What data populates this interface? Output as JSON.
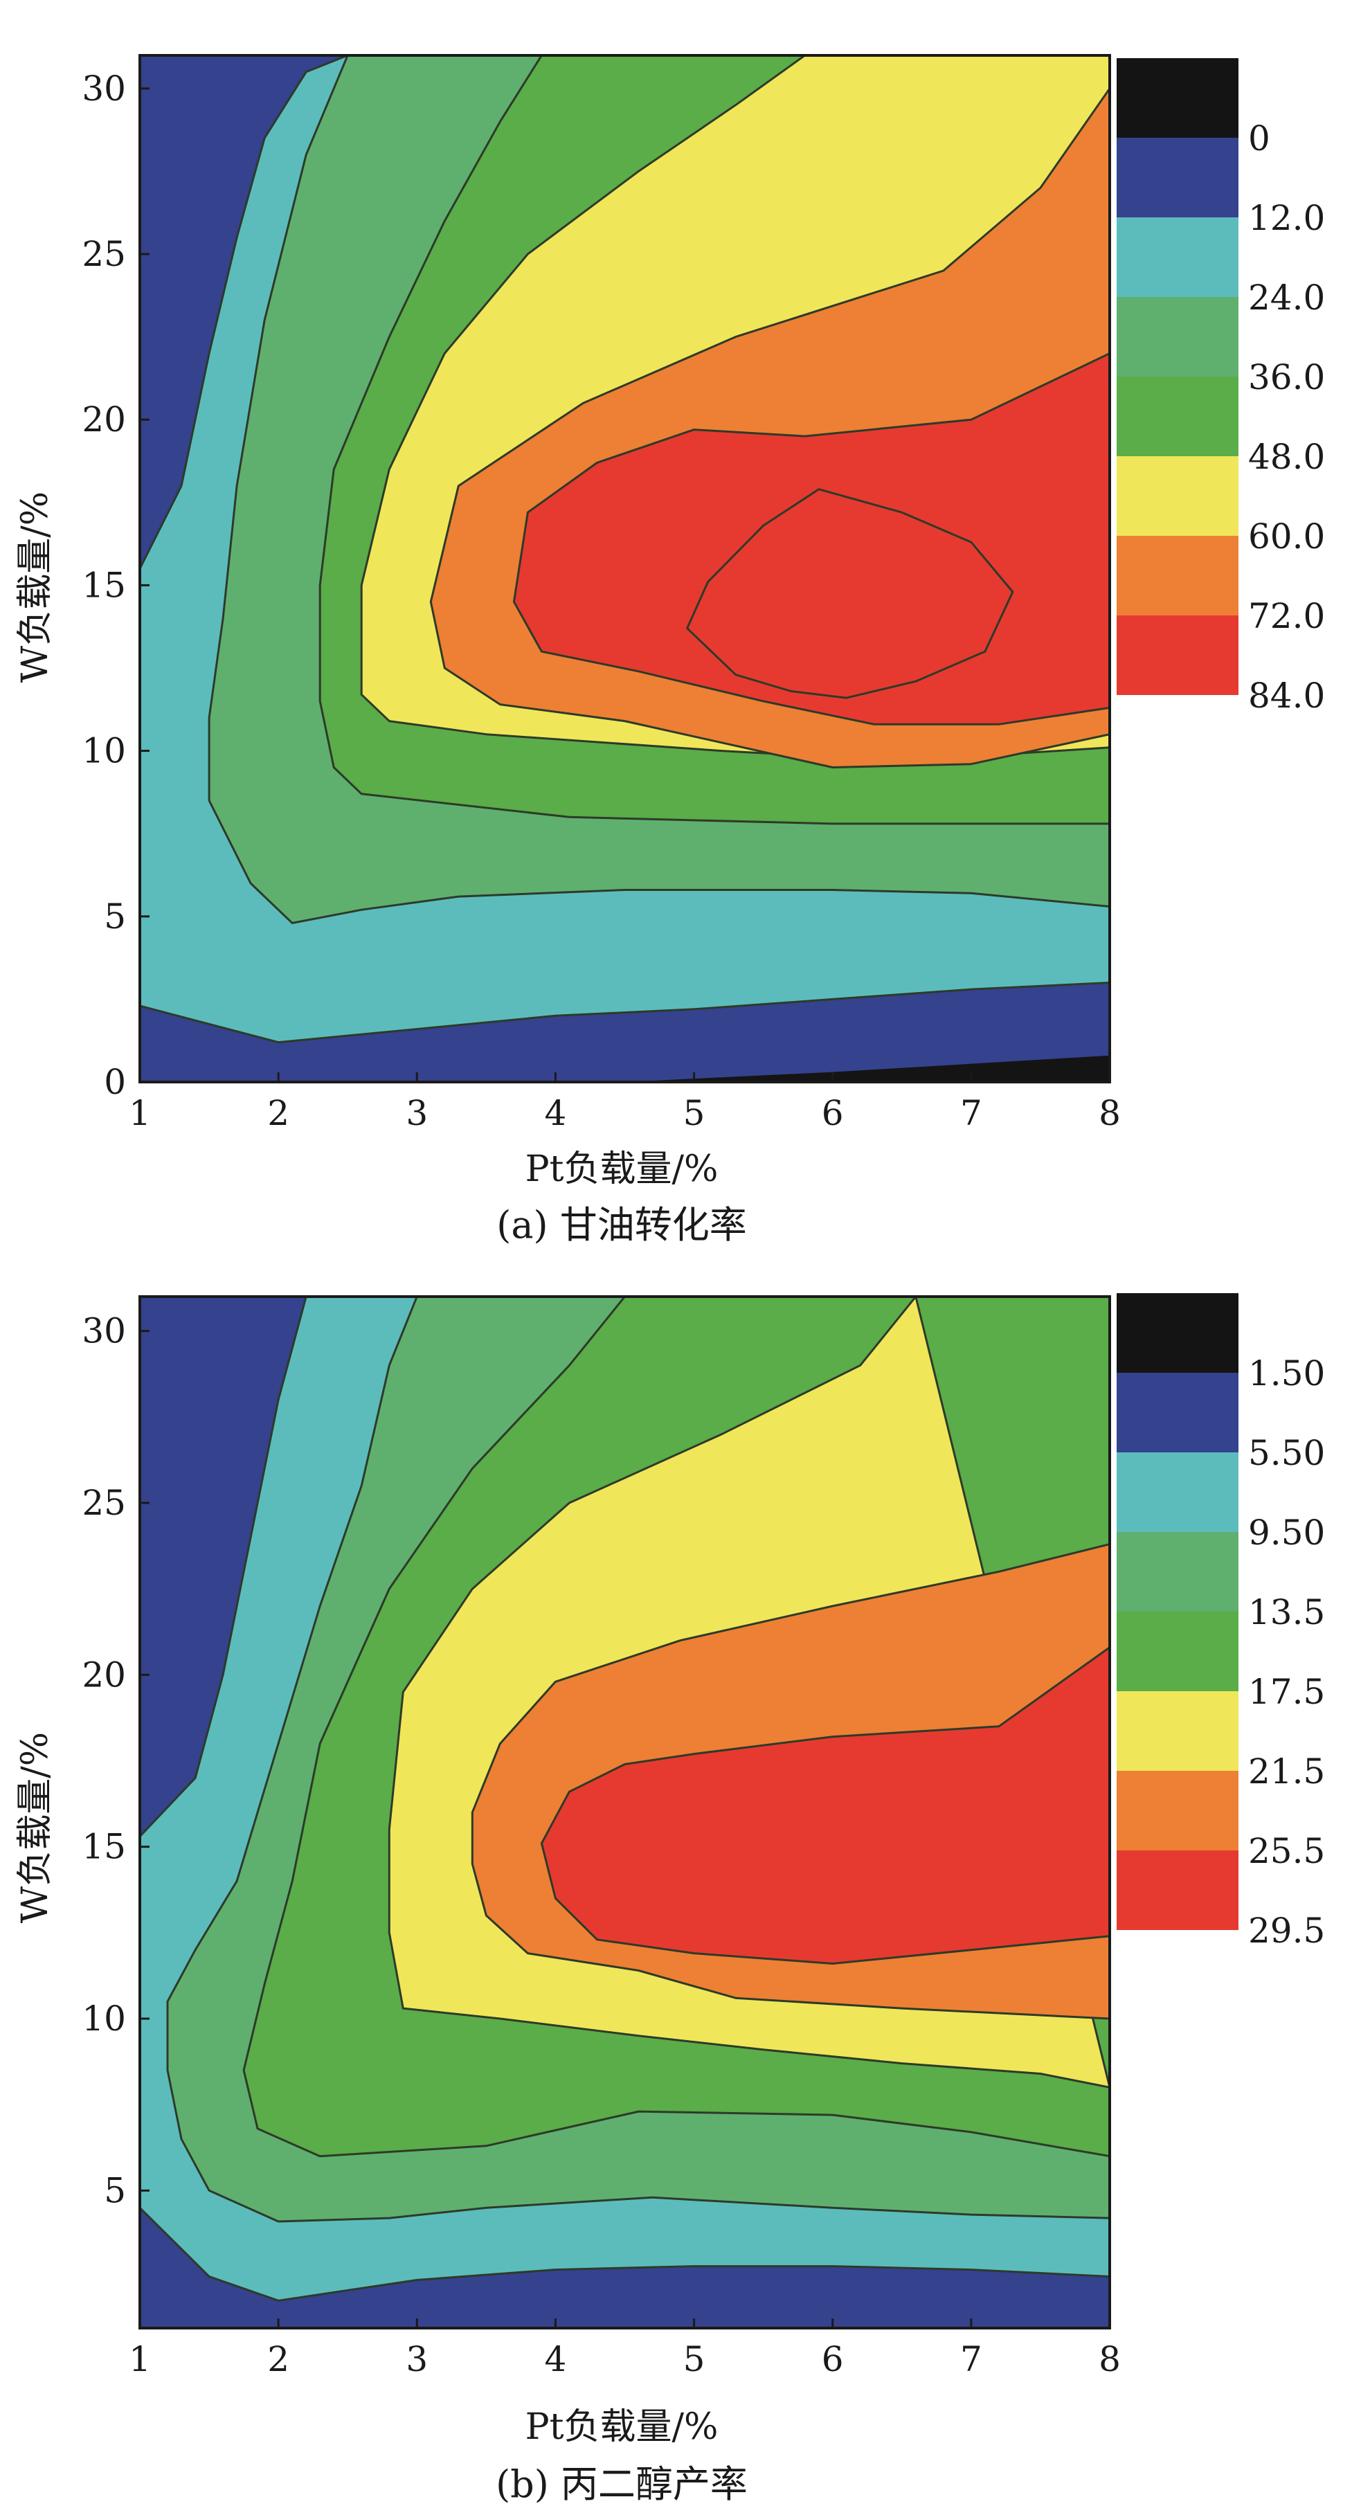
{
  "chart_data": [
    {
      "type": "heatmap",
      "subtype": "filled-contour",
      "caption": "(a) 甘油转化率",
      "xlabel": "Pt负载量/%",
      "ylabel": "W负载量/%",
      "xlim": [
        1,
        8
      ],
      "ylim": [
        0,
        31
      ],
      "x_ticks": [
        "1",
        "2",
        "3",
        "4",
        "5",
        "6",
        "7",
        "8"
      ],
      "y_ticks": [
        "0",
        "5",
        "10",
        "15",
        "20",
        "25",
        "30"
      ],
      "legend_position": "right",
      "colorbar": {
        "labels": [
          "0",
          "12.0",
          "24.0",
          "36.0",
          "48.0",
          "60.0",
          "72.0",
          "84.0"
        ],
        "colors": [
          "#141414",
          "#35428e",
          "#5cbcbc",
          "#5fb06e",
          "#5aad48",
          "#f0e65a",
          "#ed8034",
          "#e63a30"
        ]
      },
      "contours": [
        {
          "level": "12.0",
          "points": [
            [
              1,
              2.3
            ],
            [
              2,
              1.2
            ],
            [
              3,
              1.6
            ],
            [
              4,
              2.0
            ],
            [
              5,
              2.2
            ],
            [
              6,
              2.5
            ],
            [
              7,
              2.8
            ],
            [
              8,
              3.0
            ],
            [
              8,
              31
            ],
            [
              2.5,
              31
            ],
            [
              2.2,
              30.5
            ],
            [
              1.9,
              28.5
            ],
            [
              1.7,
              25.5
            ],
            [
              1.5,
              22
            ],
            [
              1.3,
              18
            ],
            [
              1,
              15.5
            ]
          ]
        },
        {
          "level": "24.0",
          "points": [
            [
              2.5,
              31
            ],
            [
              2.2,
              28
            ],
            [
              1.9,
              23
            ],
            [
              1.7,
              18
            ],
            [
              1.6,
              14
            ],
            [
              1.5,
              11
            ],
            [
              1.5,
              8.5
            ],
            [
              1.8,
              6
            ],
            [
              2.1,
              4.8
            ],
            [
              2.6,
              5.2
            ],
            [
              3.3,
              5.6
            ],
            [
              4.5,
              5.8
            ],
            [
              6,
              5.8
            ],
            [
              7,
              5.7
            ],
            [
              8,
              5.3
            ],
            [
              8,
              31
            ]
          ]
        },
        {
          "level": "36.0",
          "points": [
            [
              3.9,
              31
            ],
            [
              3.6,
              29
            ],
            [
              3.2,
              26
            ],
            [
              2.8,
              22.5
            ],
            [
              2.4,
              18.5
            ],
            [
              2.3,
              15
            ],
            [
              2.3,
              11.5
            ],
            [
              2.4,
              9.5
            ],
            [
              2.6,
              8.7
            ],
            [
              4.1,
              8.0
            ],
            [
              6,
              7.8
            ],
            [
              7,
              7.8
            ],
            [
              8,
              7.8
            ],
            [
              8,
              31
            ]
          ]
        },
        {
          "level": "48.0",
          "points": [
            [
              5.8,
              31
            ],
            [
              5.3,
              29.5
            ],
            [
              4.6,
              27.5
            ],
            [
              3.8,
              25
            ],
            [
              3.2,
              22
            ],
            [
              2.8,
              18.5
            ],
            [
              2.6,
              15
            ],
            [
              2.6,
              11.7
            ],
            [
              2.8,
              10.9
            ],
            [
              3.5,
              10.5
            ],
            [
              5.2,
              10.0
            ],
            [
              6.5,
              9.7
            ],
            [
              8,
              10.1
            ],
            [
              8,
              31
            ]
          ]
        },
        {
          "level": "60.0",
          "points": [
            [
              8,
              30
            ],
            [
              7.5,
              27
            ],
            [
              6.8,
              24.5
            ],
            [
              5.3,
              22.5
            ],
            [
              4.2,
              20.5
            ],
            [
              3.3,
              18
            ],
            [
              3.1,
              14.5
            ],
            [
              3.2,
              12.5
            ],
            [
              3.6,
              11.4
            ],
            [
              4.5,
              10.9
            ],
            [
              6.0,
              9.5
            ],
            [
              7.0,
              9.6
            ],
            [
              8,
              10.5
            ]
          ]
        },
        {
          "level": "72.0",
          "points": [
            [
              8,
              22
            ],
            [
              7.0,
              20
            ],
            [
              5.8,
              19.5
            ],
            [
              5.0,
              19.7
            ],
            [
              4.3,
              18.7
            ],
            [
              3.8,
              17.2
            ],
            [
              3.7,
              14.5
            ],
            [
              3.9,
              13
            ],
            [
              4.6,
              12.4
            ],
            [
              5.5,
              11.5
            ],
            [
              6.3,
              10.8
            ],
            [
              7.2,
              10.8
            ],
            [
              8,
              11.3
            ]
          ]
        },
        {
          "level": "84.0",
          "points": [
            [
              5.9,
              17.9
            ],
            [
              6.5,
              17.2
            ],
            [
              7.0,
              16.3
            ],
            [
              7.3,
              14.8
            ],
            [
              7.1,
              13
            ],
            [
              6.6,
              12.1
            ],
            [
              6.1,
              11.6
            ],
            [
              5.7,
              11.8
            ],
            [
              5.3,
              12.3
            ],
            [
              4.95,
              13.7
            ],
            [
              5.1,
              15.1
            ],
            [
              5.5,
              16.8
            ]
          ]
        }
      ]
    },
    {
      "type": "heatmap",
      "subtype": "filled-contour",
      "caption": "(b) 丙二醇产率",
      "xlabel": "Pt负载量/%",
      "ylabel": "W负载量/%",
      "xlim": [
        1,
        8
      ],
      "ylim": [
        1,
        31
      ],
      "x_ticks": [
        "1",
        "2",
        "3",
        "4",
        "5",
        "6",
        "7",
        "8"
      ],
      "y_ticks": [
        "5",
        "10",
        "15",
        "20",
        "25",
        "30"
      ],
      "legend_position": "right",
      "colorbar": {
        "labels": [
          "1.50",
          "5.50",
          "9.50",
          "13.5",
          "17.5",
          "21.5",
          "25.5",
          "29.5"
        ],
        "colors": [
          "#141414",
          "#35428e",
          "#5cbcbc",
          "#5fb06e",
          "#5aad48",
          "#f0e65a",
          "#ed8034",
          "#e63a30"
        ]
      },
      "contours": [
        {
          "level": "5.50",
          "points": [
            [
              1,
              4.5
            ],
            [
              1.5,
              2.5
            ],
            [
              2,
              1.8
            ],
            [
              3,
              2.4
            ],
            [
              4,
              2.7
            ],
            [
              5,
              2.8
            ],
            [
              6,
              2.8
            ],
            [
              7,
              2.7
            ],
            [
              8,
              2.5
            ],
            [
              8,
              31
            ],
            [
              2.2,
              31
            ],
            [
              2.0,
              28
            ],
            [
              1.8,
              24
            ],
            [
              1.6,
              20
            ],
            [
              1.4,
              17
            ],
            [
              1,
              15.3
            ]
          ]
        },
        {
          "level": "9.50",
          "points": [
            [
              3.0,
              31
            ],
            [
              2.8,
              29
            ],
            [
              2.6,
              25.5
            ],
            [
              2.3,
              22
            ],
            [
              2.0,
              18
            ],
            [
              1.7,
              14
            ],
            [
              1.4,
              12
            ],
            [
              1.2,
              10.5
            ],
            [
              1.2,
              8.5
            ],
            [
              1.3,
              6.5
            ],
            [
              1.5,
              5
            ],
            [
              2.0,
              4.1
            ],
            [
              2.8,
              4.2
            ],
            [
              3.5,
              4.5
            ],
            [
              4.7,
              4.8
            ],
            [
              6,
              4.5
            ],
            [
              7,
              4.3
            ],
            [
              8,
              4.2
            ],
            [
              8,
              31
            ]
          ]
        },
        {
          "level": "13.5",
          "points": [
            [
              4.5,
              31
            ],
            [
              4.1,
              29
            ],
            [
              3.4,
              26
            ],
            [
              2.8,
              22.5
            ],
            [
              2.3,
              18
            ],
            [
              2.1,
              14
            ],
            [
              1.9,
              11
            ],
            [
              1.75,
              8.5
            ],
            [
              1.85,
              6.8
            ],
            [
              2.3,
              6.0
            ],
            [
              3.5,
              6.3
            ],
            [
              4.6,
              7.3
            ],
            [
              6,
              7.2
            ],
            [
              7,
              6.7
            ],
            [
              8,
              6.0
            ],
            [
              8,
              31
            ]
          ]
        },
        {
          "level": "17.5",
          "points": [
            [
              6.6,
              31
            ],
            [
              6.2,
              29
            ],
            [
              5.2,
              27
            ],
            [
              4.1,
              25
            ],
            [
              3.4,
              22.5
            ],
            [
              2.9,
              19.5
            ],
            [
              2.8,
              15.5
            ],
            [
              2.8,
              12.5
            ],
            [
              2.9,
              10.3
            ],
            [
              3.6,
              10.0
            ],
            [
              4.6,
              9.5
            ],
            [
              5.5,
              9.1
            ],
            [
              6.5,
              8.7
            ],
            [
              7.5,
              8.4
            ],
            [
              8,
              8.0
            ]
          ]
        },
        {
          "level": "21.5",
          "points": [
            [
              8,
              23.8
            ],
            [
              7.2,
              23
            ],
            [
              6.0,
              22
            ],
            [
              4.9,
              21
            ],
            [
              4.0,
              19.8
            ],
            [
              3.6,
              18
            ],
            [
              3.4,
              16
            ],
            [
              3.4,
              14.5
            ],
            [
              3.5,
              13
            ],
            [
              3.8,
              11.9
            ],
            [
              4.6,
              11.4
            ],
            [
              5.3,
              10.6
            ],
            [
              6.5,
              10.3
            ],
            [
              8,
              10.0
            ]
          ]
        },
        {
          "level": "25.5",
          "points": [
            [
              8,
              20.8
            ],
            [
              7.2,
              18.5
            ],
            [
              6.0,
              18.2
            ],
            [
              5.0,
              17.7
            ],
            [
              4.5,
              17.4
            ],
            [
              4.1,
              16.6
            ],
            [
              3.9,
              15.1
            ],
            [
              4.0,
              13.5
            ],
            [
              4.3,
              12.3
            ],
            [
              5.0,
              11.9
            ],
            [
              6.0,
              11.6
            ],
            [
              7.0,
              12.0
            ],
            [
              8,
              12.4
            ]
          ]
        }
      ]
    }
  ]
}
